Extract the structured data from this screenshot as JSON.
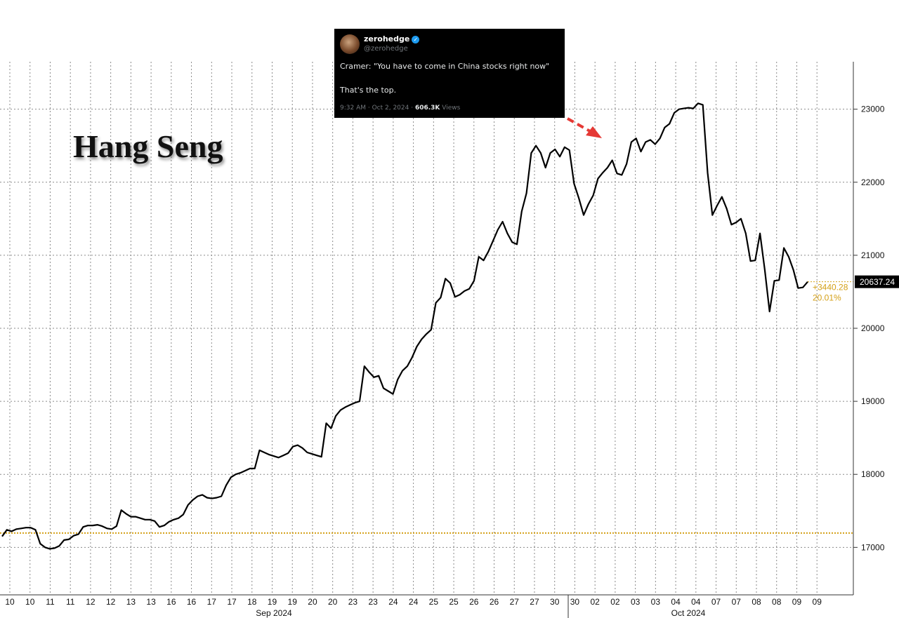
{
  "chart_data": {
    "type": "line",
    "title": "Hang Seng",
    "ylim": [
      16350,
      23650
    ],
    "y_ticks": [
      17000,
      18000,
      19000,
      20000,
      21000,
      22000,
      23000
    ],
    "x_tick_labels": [
      "10",
      "10",
      "11",
      "11",
      "12",
      "12",
      "13",
      "13",
      "16",
      "16",
      "17",
      "17",
      "18",
      "19",
      "19",
      "20",
      "20",
      "23",
      "23",
      "24",
      "24",
      "25",
      "25",
      "26",
      "26",
      "27",
      "27",
      "30",
      "30",
      "02",
      "02",
      "03",
      "03",
      "04",
      "04",
      "07",
      "07",
      "08",
      "08",
      "09",
      "09"
    ],
    "month_labels": [
      "Sep 2024",
      "Oct 2024"
    ],
    "reference_level": 17197,
    "last_value": "20637.24",
    "change_abs": "+3440.28",
    "change_pct": "20.01%",
    "grid": true,
    "colors": {
      "line": "#000000",
      "reference": "#d4a017",
      "annotation": "#e53935",
      "last_badge": "#000000"
    },
    "series": [
      {
        "values": [
          17150,
          17240,
          17220,
          17250,
          17260,
          17270,
          17270,
          17240,
          17050,
          17000,
          16980,
          16990,
          17020,
          17100,
          17110,
          17160,
          17180,
          17280,
          17300,
          17300,
          17310,
          17290,
          17260,
          17250,
          17290,
          17510,
          17460,
          17420,
          17420,
          17400,
          17380,
          17380,
          17360,
          17280,
          17300,
          17350,
          17380,
          17400,
          17450,
          17580,
          17650,
          17700,
          17720,
          17680,
          17670,
          17680,
          17700,
          17850,
          17960,
          18000,
          18020,
          18050,
          18080,
          18080,
          18330,
          18300,
          18270,
          18250,
          18230,
          18260,
          18290,
          18380,
          18400,
          18360,
          18300,
          18280,
          18260,
          18240,
          18700,
          18630,
          18800,
          18880,
          18920,
          18950,
          18980,
          19000,
          19480,
          19400,
          19330,
          19350,
          19180,
          19140,
          19100,
          19300,
          19420,
          19480,
          19600,
          19750,
          19850,
          19920,
          19980,
          20350,
          20420,
          20680,
          20620,
          20430,
          20460,
          20510,
          20540,
          20650,
          20980,
          20930,
          21050,
          21200,
          21350,
          21460,
          21300,
          21180,
          21150,
          21600,
          21850,
          22400,
          22500,
          22400,
          22200,
          22400,
          22450,
          22350,
          22480,
          22440,
          21980,
          21780,
          21550,
          21700,
          21820,
          22050,
          22130,
          22200,
          22300,
          22120,
          22100,
          22250,
          22550,
          22600,
          22420,
          22550,
          22580,
          22520,
          22600,
          22750,
          22800,
          22950,
          23000,
          23010,
          23020,
          23010,
          23080,
          23060,
          22130,
          21550,
          21680,
          21800,
          21640,
          21420,
          21450,
          21500,
          21300,
          20920,
          20930,
          21300,
          20800,
          20230,
          20650,
          20660,
          21100,
          20980,
          20800,
          20550,
          20560,
          20637
        ]
      }
    ]
  },
  "tweet": {
    "name": "zerohedge",
    "handle": "@zerohedge",
    "line1": "Cramer: \"You have to come in China stocks right now\"",
    "line2": "That's the top.",
    "meta_time": "9:32 AM · Oct 2, 2024 · ",
    "meta_views": "606.3K",
    "meta_views_suffix": " Views"
  }
}
